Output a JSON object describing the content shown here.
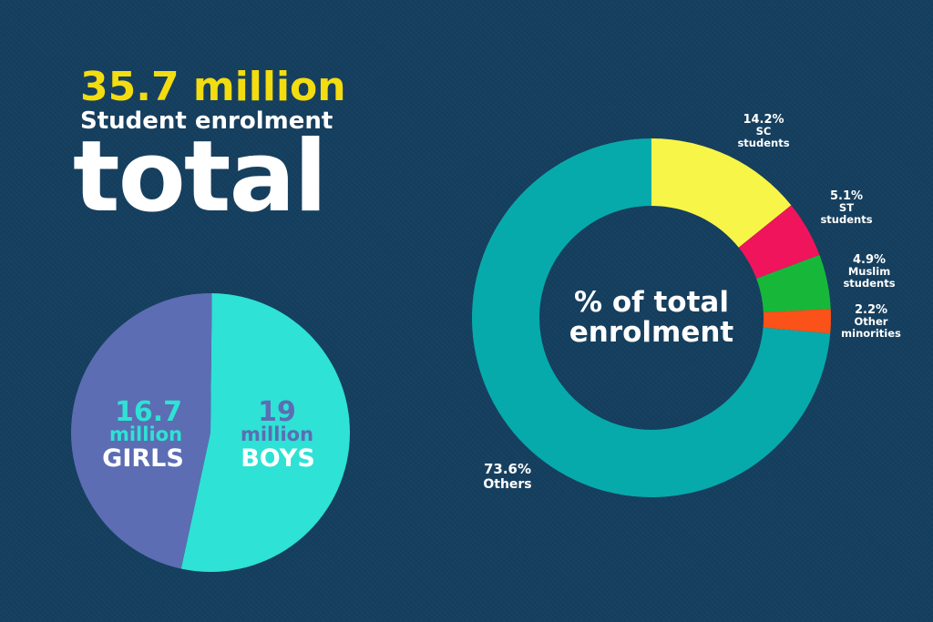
{
  "headline": {
    "number": "35.7 million",
    "subtitle": "Student enrolment",
    "word": "total"
  },
  "colors": {
    "background": "#153f5f",
    "number_yellow": "#f3dc10",
    "girls": "#5c6db3",
    "boys": "#2ee2d5",
    "sc": "#f8f549",
    "st": "#f0145c",
    "muslim": "#17b83a",
    "other_minorities": "#fa5218",
    "others": "#07aaaa"
  },
  "chart_data": [
    {
      "type": "pie",
      "slices": [
        {
          "label": "GIRLS",
          "value": 16.7,
          "value_text": "16.7",
          "unit_text": "million",
          "color": "#5c6db3"
        },
        {
          "label": "BOYS",
          "value": 19,
          "value_text": "19",
          "unit_text": "million",
          "color": "#2ee2d5"
        }
      ]
    },
    {
      "type": "pie",
      "style": "donut",
      "center_label": [
        "% of total",
        "enrolment"
      ],
      "slices": [
        {
          "value": 14.2,
          "pct_text": "14.2%",
          "label_lines": [
            "SC",
            "students"
          ],
          "color": "#f8f549"
        },
        {
          "value": 5.1,
          "pct_text": "5.1%",
          "label_lines": [
            "ST",
            "students"
          ],
          "color": "#f0145c"
        },
        {
          "value": 4.9,
          "pct_text": "4.9%",
          "label_lines": [
            "Muslim",
            "students"
          ],
          "color": "#17b83a"
        },
        {
          "value": 2.2,
          "pct_text": "2.2%",
          "label_lines": [
            "Other",
            "minorities"
          ],
          "color": "#fa5218"
        },
        {
          "value": 73.6,
          "pct_text": "73.6%",
          "label_lines": [
            "Others"
          ],
          "color": "#07aaaa"
        }
      ]
    }
  ]
}
